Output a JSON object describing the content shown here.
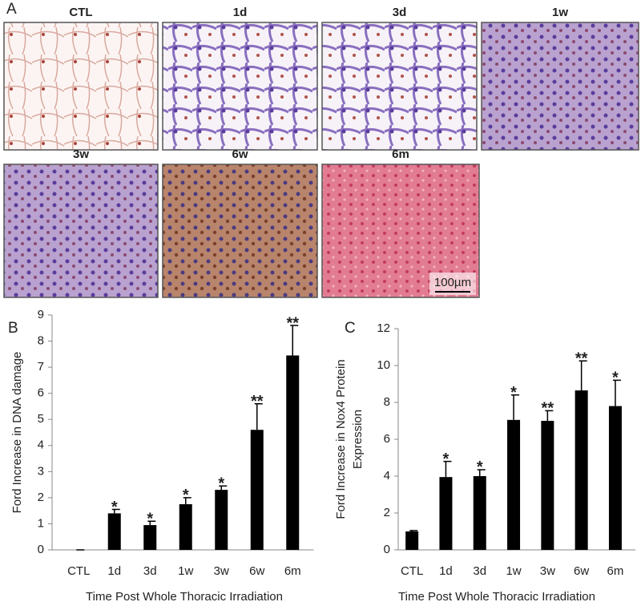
{
  "panel_a": {
    "label": "A",
    "images": [
      "CTL",
      "1d",
      "3d",
      "1w",
      "3w",
      "6w",
      "6m"
    ],
    "scale_bar": "100µm"
  },
  "chart_data": [
    {
      "type": "bar",
      "panel_label": "B",
      "ylabel": [
        "Ford Increase in DNA damage"
      ],
      "xlabel": "Time Post Whole Thoracic Irradiation",
      "categories": [
        "CTL",
        "1d",
        "3d",
        "1w",
        "3w",
        "6w",
        "6m"
      ],
      "values": [
        0,
        1.4,
        0.95,
        1.75,
        2.3,
        4.6,
        7.45
      ],
      "errors": [
        0,
        0.15,
        0.15,
        0.25,
        0.15,
        1.0,
        1.15
      ],
      "significance": [
        null,
        "*",
        "*",
        "*",
        "*",
        "**",
        "**"
      ],
      "color": "#000000",
      "ylim": [
        0,
        9
      ],
      "yticks": [
        0,
        1,
        2,
        3,
        4,
        5,
        6,
        7,
        8,
        9
      ]
    },
    {
      "type": "bar",
      "panel_label": "C",
      "ylabel": [
        "Ford Increase in Nox4 Protein",
        "Expression"
      ],
      "xlabel": "Time Post Whole Thoracic Irradiation",
      "categories": [
        "CTL",
        "1d",
        "3d",
        "1w",
        "3w",
        "6w",
        "6m"
      ],
      "values": [
        1.0,
        3.95,
        4.0,
        7.05,
        7.0,
        8.65,
        7.8
      ],
      "errors": [
        0.05,
        0.85,
        0.35,
        1.35,
        0.55,
        1.6,
        1.4
      ],
      "significance": [
        null,
        "*",
        "*",
        "*",
        "**",
        "**",
        "*"
      ],
      "color": "#000000",
      "ylim": [
        0,
        12
      ],
      "yticks": [
        0,
        2,
        4,
        6,
        8,
        10,
        12
      ]
    }
  ]
}
